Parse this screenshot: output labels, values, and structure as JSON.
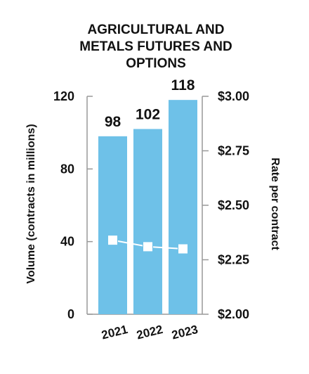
{
  "chart_data": {
    "type": "bar",
    "title_lines": [
      "AGRICULTURAL AND",
      "METALS FUTURES AND",
      "OPTIONS"
    ],
    "categories": [
      "2021",
      "2022",
      "2023"
    ],
    "series": [
      {
        "values": [
          98,
          102,
          118
        ],
        "data_labels": [
          "98",
          "102",
          "118"
        ]
      },
      {
        "values": [
          2.34,
          2.31,
          2.3
        ]
      }
    ],
    "ylabel": "Volume (contracts in millions)",
    "y2label": "Rate per contract",
    "ylim": [
      0,
      120
    ],
    "y2lim": [
      2.0,
      3.0
    ],
    "yticks": [
      "0",
      "40",
      "80",
      "120"
    ],
    "y2ticks": [
      "$2.00",
      "$2.25",
      "$2.50",
      "$2.75",
      "$3.00"
    ],
    "grid": false,
    "colors": {
      "bar": "#6EC1E8",
      "line": "#ffffff",
      "marker": "#ffffff",
      "marker_border": "#6EC1E8",
      "axis": "#999999",
      "text": "#111111"
    }
  }
}
